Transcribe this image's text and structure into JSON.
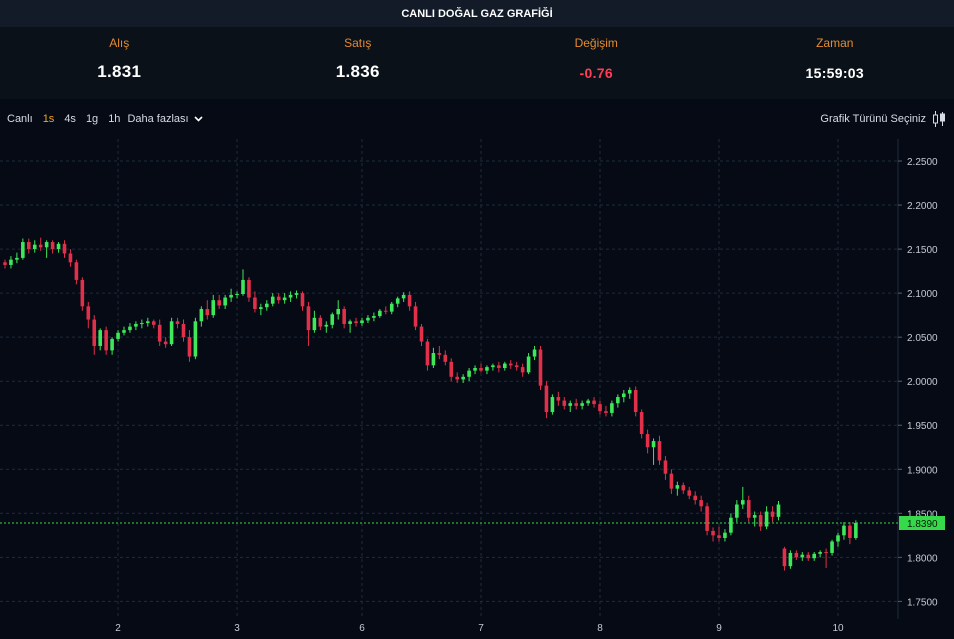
{
  "header": {
    "title": "CANLI DOĞAL GAZ GRAFİĞİ"
  },
  "quote": {
    "bid_label": "Alış",
    "bid_value": "1.831",
    "ask_label": "Satış",
    "ask_value": "1.836",
    "change_label": "Değişim",
    "change_value": "-0.76",
    "time_label": "Zaman",
    "time_value": "15:59:03"
  },
  "toolbar": {
    "live_label": "Canlı",
    "timeframes": [
      {
        "label": "1s",
        "active": true
      },
      {
        "label": "4s",
        "active": false
      },
      {
        "label": "1g",
        "active": false
      },
      {
        "label": "1h",
        "active": false
      }
    ],
    "more_label": "Daha fazlası",
    "chart_type_label": "Grafik Türünü Seçiniz",
    "chart_type_icon": "candlestick-icon",
    "more_icon": "chevron-down-icon"
  },
  "colors": {
    "up": "#3ee85a",
    "down": "#e0304a",
    "accent": "#f5a623",
    "last_price": "#36d94a",
    "grid": "#1f2c3d"
  },
  "chart_data": {
    "type": "candlestick",
    "title": "",
    "xlabel": "",
    "ylabel": "",
    "ylim": [
      1.73,
      2.275
    ],
    "y_ticks": [
      "2.2500",
      "2.2000",
      "2.1500",
      "2.1000",
      "2.0500",
      "2.0000",
      "1.9500",
      "1.9000",
      "1.8500",
      "1.8000",
      "1.7500"
    ],
    "x_ticks": [
      {
        "label": "2",
        "index": 19
      },
      {
        "label": "3",
        "index": 39
      },
      {
        "label": "6",
        "index": 60
      },
      {
        "label": "7",
        "index": 80
      },
      {
        "label": "8",
        "index": 100
      },
      {
        "label": "9",
        "index": 120
      },
      {
        "label": "10",
        "index": 140
      }
    ],
    "grid": true,
    "last_price": "1.8390",
    "candles": [
      [
        2.135,
        2.138,
        2.128,
        2.132
      ],
      [
        2.132,
        2.142,
        2.128,
        2.138
      ],
      [
        2.138,
        2.146,
        2.134,
        2.14
      ],
      [
        2.14,
        2.162,
        2.138,
        2.158
      ],
      [
        2.158,
        2.162,
        2.145,
        2.15
      ],
      [
        2.15,
        2.16,
        2.146,
        2.155
      ],
      [
        2.155,
        2.163,
        2.148,
        2.152
      ],
      [
        2.152,
        2.16,
        2.14,
        2.158
      ],
      [
        2.158,
        2.16,
        2.145,
        2.15
      ],
      [
        2.15,
        2.158,
        2.146,
        2.156
      ],
      [
        2.156,
        2.16,
        2.14,
        2.145
      ],
      [
        2.145,
        2.15,
        2.13,
        2.135
      ],
      [
        2.135,
        2.138,
        2.11,
        2.115
      ],
      [
        2.115,
        2.118,
        2.08,
        2.085
      ],
      [
        2.085,
        2.09,
        2.06,
        2.07
      ],
      [
        2.07,
        2.075,
        2.03,
        2.04
      ],
      [
        2.04,
        2.06,
        2.035,
        2.058
      ],
      [
        2.058,
        2.062,
        2.03,
        2.035
      ],
      [
        2.035,
        2.05,
        2.03,
        2.048
      ],
      [
        2.048,
        2.058,
        2.045,
        2.055
      ],
      [
        2.055,
        2.062,
        2.052,
        2.058
      ],
      [
        2.058,
        2.066,
        2.055,
        2.062
      ],
      [
        2.062,
        2.068,
        2.058,
        2.065
      ],
      [
        2.065,
        2.07,
        2.06,
        2.066
      ],
      [
        2.066,
        2.072,
        2.062,
        2.068
      ],
      [
        2.068,
        2.07,
        2.06,
        2.064
      ],
      [
        2.064,
        2.07,
        2.04,
        2.045
      ],
      [
        2.045,
        2.05,
        2.038,
        2.042
      ],
      [
        2.042,
        2.072,
        2.04,
        2.068
      ],
      [
        2.068,
        2.072,
        2.06,
        2.065
      ],
      [
        2.065,
        2.07,
        2.045,
        2.05
      ],
      [
        2.05,
        2.058,
        2.022,
        2.028
      ],
      [
        2.028,
        2.072,
        2.025,
        2.068
      ],
      [
        2.068,
        2.085,
        2.062,
        2.082
      ],
      [
        2.082,
        2.092,
        2.07,
        2.075
      ],
      [
        2.075,
        2.098,
        2.072,
        2.092
      ],
      [
        2.092,
        2.098,
        2.082,
        2.086
      ],
      [
        2.086,
        2.098,
        2.082,
        2.095
      ],
      [
        2.095,
        2.105,
        2.09,
        2.098
      ],
      [
        2.098,
        2.102,
        2.094,
        2.099
      ],
      [
        2.099,
        2.127,
        2.097,
        2.115
      ],
      [
        2.115,
        2.118,
        2.09,
        2.095
      ],
      [
        2.095,
        2.102,
        2.078,
        2.082
      ],
      [
        2.082,
        2.088,
        2.075,
        2.084
      ],
      [
        2.084,
        2.092,
        2.08,
        2.088
      ],
      [
        2.088,
        2.1,
        2.085,
        2.096
      ],
      [
        2.096,
        2.1,
        2.088,
        2.092
      ],
      [
        2.092,
        2.1,
        2.088,
        2.095
      ],
      [
        2.095,
        2.102,
        2.09,
        2.098
      ],
      [
        2.098,
        2.103,
        2.094,
        2.1
      ],
      [
        2.1,
        2.102,
        2.08,
        2.085
      ],
      [
        2.085,
        2.09,
        2.04,
        2.058
      ],
      [
        2.058,
        2.08,
        2.055,
        2.072
      ],
      [
        2.072,
        2.075,
        2.058,
        2.062
      ],
      [
        2.062,
        2.068,
        2.055,
        2.064
      ],
      [
        2.064,
        2.078,
        2.06,
        2.076
      ],
      [
        2.076,
        2.092,
        2.07,
        2.082
      ],
      [
        2.082,
        2.085,
        2.06,
        2.065
      ],
      [
        2.065,
        2.07,
        2.055,
        2.068
      ],
      [
        2.068,
        2.072,
        2.062,
        2.066
      ],
      [
        2.066,
        2.072,
        2.063,
        2.069
      ],
      [
        2.069,
        2.075,
        2.066,
        2.072
      ],
      [
        2.072,
        2.078,
        2.068,
        2.074
      ],
      [
        2.074,
        2.082,
        2.072,
        2.08
      ],
      [
        2.08,
        2.085,
        2.076,
        2.079
      ],
      [
        2.079,
        2.09,
        2.076,
        2.088
      ],
      [
        2.088,
        2.096,
        2.084,
        2.094
      ],
      [
        2.094,
        2.101,
        2.09,
        2.098
      ],
      [
        2.098,
        2.102,
        2.08,
        2.085
      ],
      [
        2.085,
        2.09,
        2.058,
        2.062
      ],
      [
        2.062,
        2.065,
        2.04,
        2.045
      ],
      [
        2.045,
        2.048,
        2.012,
        2.018
      ],
      [
        2.018,
        2.038,
        2.015,
        2.032
      ],
      [
        2.032,
        2.04,
        2.025,
        2.03
      ],
      [
        2.03,
        2.035,
        2.018,
        2.022
      ],
      [
        2.022,
        2.026,
        2.0,
        2.005
      ],
      [
        2.005,
        2.01,
        1.998,
        2.002
      ],
      [
        2.002,
        2.008,
        1.998,
        2.005
      ],
      [
        2.005,
        2.015,
        2.0,
        2.012
      ],
      [
        2.012,
        2.018,
        2.008,
        2.015
      ],
      [
        2.015,
        2.02,
        2.01,
        2.012
      ],
      [
        2.012,
        2.018,
        2.008,
        2.016
      ],
      [
        2.016,
        2.02,
        2.012,
        2.018
      ],
      [
        2.018,
        2.022,
        2.01,
        2.015
      ],
      [
        2.015,
        2.022,
        2.012,
        2.02
      ],
      [
        2.02,
        2.024,
        2.014,
        2.018
      ],
      [
        2.018,
        2.022,
        2.012,
        2.016
      ],
      [
        2.016,
        2.02,
        2.005,
        2.01
      ],
      [
        2.01,
        2.032,
        2.008,
        2.028
      ],
      [
        2.028,
        2.04,
        2.024,
        2.036
      ],
      [
        2.036,
        2.04,
        1.99,
        1.995
      ],
      [
        1.995,
        2.0,
        1.958,
        1.965
      ],
      [
        1.965,
        1.985,
        1.962,
        1.982
      ],
      [
        1.982,
        1.988,
        1.972,
        1.978
      ],
      [
        1.978,
        1.982,
        1.968,
        1.972
      ],
      [
        1.972,
        1.978,
        1.965,
        1.975
      ],
      [
        1.975,
        1.98,
        1.968,
        1.972
      ],
      [
        1.972,
        1.978,
        1.968,
        1.975
      ],
      [
        1.975,
        1.98,
        1.972,
        1.978
      ],
      [
        1.978,
        1.982,
        1.97,
        1.974
      ],
      [
        1.974,
        1.978,
        1.962,
        1.966
      ],
      [
        1.966,
        1.972,
        1.96,
        1.964
      ],
      [
        1.964,
        1.978,
        1.96,
        1.975
      ],
      [
        1.975,
        1.985,
        1.97,
        1.982
      ],
      [
        1.982,
        1.99,
        1.976,
        1.986
      ],
      [
        1.986,
        1.993,
        1.98,
        1.99
      ],
      [
        1.99,
        1.994,
        1.96,
        1.965
      ],
      [
        1.965,
        1.968,
        1.935,
        1.94
      ],
      [
        1.94,
        1.945,
        1.918,
        1.925
      ],
      [
        1.925,
        1.935,
        1.905,
        1.932
      ],
      [
        1.932,
        1.938,
        1.905,
        1.91
      ],
      [
        1.91,
        1.915,
        1.888,
        1.895
      ],
      [
        1.895,
        1.9,
        1.872,
        1.878
      ],
      [
        1.878,
        1.886,
        1.87,
        1.882
      ],
      [
        1.882,
        1.885,
        1.872,
        1.876
      ],
      [
        1.876,
        1.88,
        1.866,
        1.87
      ],
      [
        1.87,
        1.875,
        1.86,
        1.865
      ],
      [
        1.865,
        1.87,
        1.852,
        1.858
      ],
      [
        1.858,
        1.862,
        1.825,
        1.83
      ],
      [
        1.83,
        1.834,
        1.818,
        1.825
      ],
      [
        1.825,
        1.835,
        1.818,
        1.822
      ],
      [
        1.822,
        1.832,
        1.818,
        1.828
      ],
      [
        1.828,
        1.85,
        1.825,
        1.845
      ],
      [
        1.845,
        1.865,
        1.84,
        1.86
      ],
      [
        1.86,
        1.88,
        1.855,
        1.865
      ],
      [
        1.865,
        1.87,
        1.84,
        1.845
      ],
      [
        1.845,
        1.852,
        1.835,
        1.848
      ],
      [
        1.848,
        1.852,
        1.83,
        1.835
      ],
      [
        1.835,
        1.858,
        1.832,
        1.852
      ],
      [
        1.852,
        1.858,
        1.84,
        1.846
      ],
      [
        1.846,
        1.864,
        1.842,
        1.86
      ],
      [
        1.81,
        1.812,
        1.785,
        1.79
      ],
      [
        1.79,
        1.808,
        1.787,
        1.805
      ],
      [
        1.805,
        1.808,
        1.797,
        1.8
      ],
      [
        1.8,
        1.806,
        1.796,
        1.803
      ],
      [
        1.803,
        1.806,
        1.796,
        1.799
      ],
      [
        1.799,
        1.806,
        1.796,
        1.804
      ],
      [
        1.804,
        1.808,
        1.8,
        1.806
      ],
      [
        1.806,
        1.81,
        1.788,
        1.805
      ],
      [
        1.805,
        1.82,
        1.802,
        1.818
      ],
      [
        1.818,
        1.828,
        1.812,
        1.825
      ],
      [
        1.825,
        1.84,
        1.82,
        1.836
      ],
      [
        1.836,
        1.84,
        1.815,
        1.822
      ],
      [
        1.822,
        1.842,
        1.82,
        1.839
      ]
    ]
  }
}
